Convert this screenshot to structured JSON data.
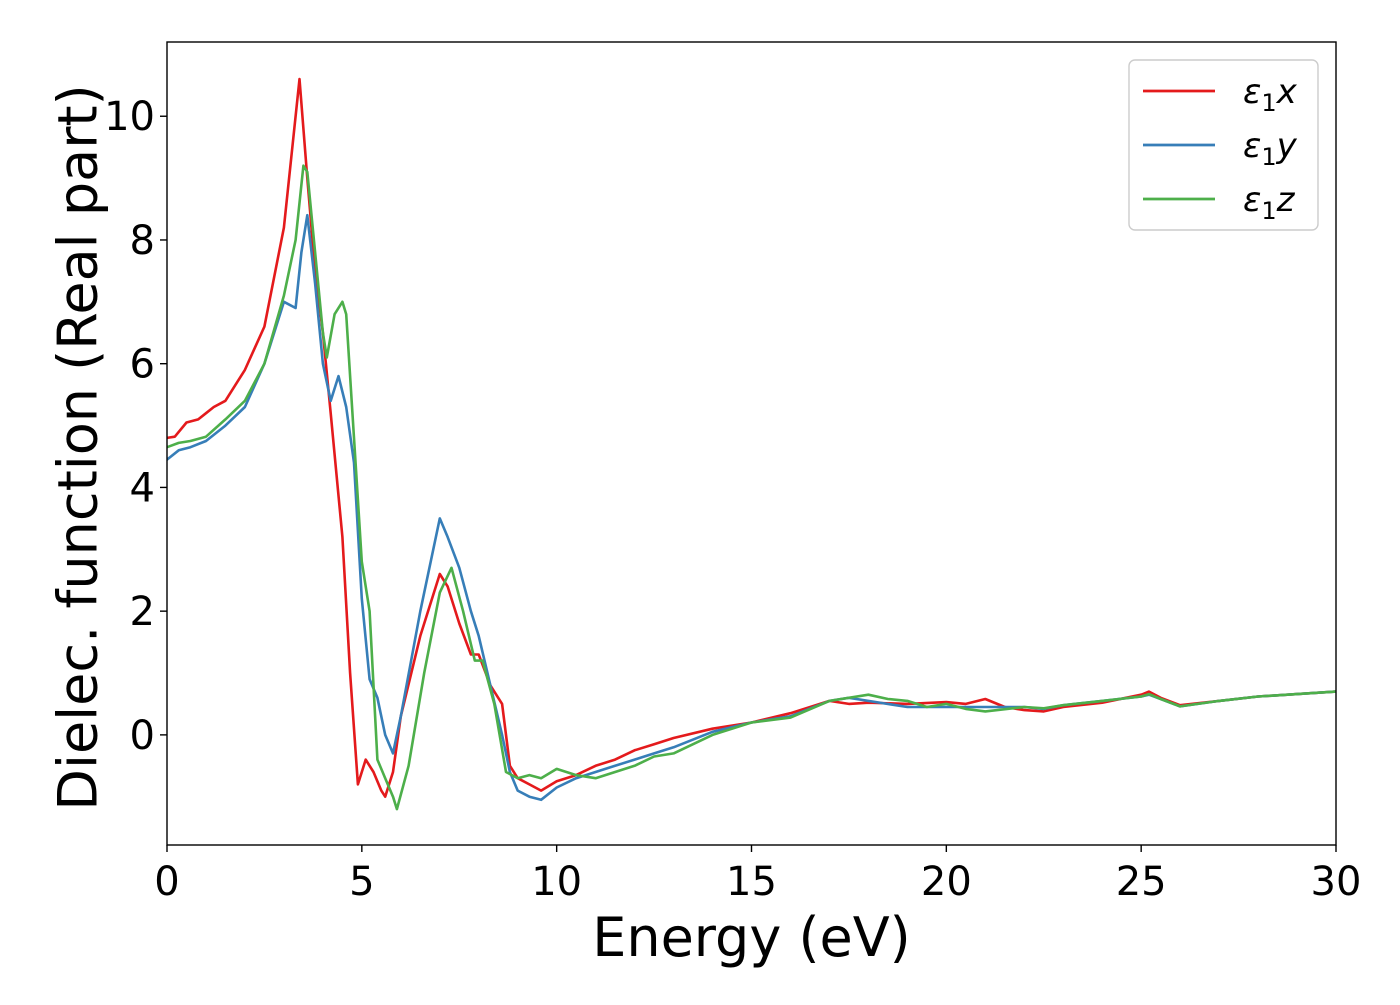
{
  "chart_data": {
    "type": "line",
    "title": "",
    "xlabel": "Energy (eV)",
    "ylabel": "Dielec. function (Real part)",
    "xlim": [
      0,
      30
    ],
    "ylim": [
      -1.78,
      11.2
    ],
    "xticks": [
      0,
      5,
      10,
      15,
      20,
      25,
      30
    ],
    "yticks": [
      0,
      2,
      4,
      6,
      8,
      10
    ],
    "grid": false,
    "legend_position": "top-right",
    "series": [
      {
        "name": "ε1x",
        "legend_base": "ε",
        "legend_sub": "1",
        "legend_suffix": "x",
        "color": "#e41a1c",
        "x": [
          0,
          0.2,
          0.5,
          0.8,
          1.0,
          1.2,
          1.5,
          2.0,
          2.5,
          3.0,
          3.2,
          3.4,
          3.6,
          3.8,
          4.0,
          4.2,
          4.5,
          4.7,
          4.9,
          5.1,
          5.3,
          5.5,
          5.6,
          5.8,
          6.0,
          6.5,
          7.0,
          7.2,
          7.5,
          7.8,
          8.0,
          8.3,
          8.6,
          8.8,
          9.0,
          9.3,
          9.6,
          10.0,
          10.5,
          11.0,
          11.5,
          12.0,
          12.5,
          13.0,
          14.0,
          15.0,
          16.0,
          17.0,
          17.5,
          18.0,
          19.0,
          20.0,
          20.5,
          21.0,
          21.5,
          22.0,
          22.5,
          23.0,
          24.0,
          25.0,
          25.2,
          25.5,
          26.0,
          27.0,
          28.0,
          29.0,
          30.0
        ],
        "y": [
          4.8,
          4.82,
          5.05,
          5.1,
          5.2,
          5.3,
          5.4,
          5.9,
          6.6,
          8.2,
          9.4,
          10.6,
          9.0,
          7.5,
          6.5,
          5.2,
          3.2,
          1.0,
          -0.8,
          -0.4,
          -0.6,
          -0.9,
          -1.0,
          -0.6,
          0.3,
          1.6,
          2.6,
          2.4,
          1.8,
          1.3,
          1.3,
          0.8,
          0.5,
          -0.5,
          -0.7,
          -0.8,
          -0.9,
          -0.75,
          -0.65,
          -0.5,
          -0.4,
          -0.25,
          -0.15,
          -0.05,
          0.1,
          0.2,
          0.35,
          0.55,
          0.5,
          0.52,
          0.5,
          0.53,
          0.5,
          0.58,
          0.45,
          0.4,
          0.38,
          0.45,
          0.52,
          0.65,
          0.7,
          0.6,
          0.48,
          0.55,
          0.62,
          0.66,
          0.7
        ]
      },
      {
        "name": "ε1y",
        "legend_base": "ε",
        "legend_sub": "1",
        "legend_suffix": "y",
        "color": "#377eb8",
        "x": [
          0,
          0.3,
          0.6,
          1.0,
          1.5,
          2.0,
          2.5,
          3.0,
          3.3,
          3.45,
          3.6,
          3.8,
          4.0,
          4.2,
          4.4,
          4.6,
          4.8,
          5.0,
          5.2,
          5.4,
          5.6,
          5.8,
          6.0,
          6.5,
          7.0,
          7.2,
          7.5,
          7.8,
          8.0,
          8.3,
          8.6,
          8.8,
          9.0,
          9.3,
          9.6,
          10.0,
          10.5,
          11.0,
          11.5,
          12.0,
          12.5,
          13.0,
          14.0,
          15.0,
          16.0,
          17.0,
          17.5,
          18.0,
          19.0,
          20.0,
          20.5,
          21.0,
          21.5,
          22.0,
          22.5,
          23.0,
          24.0,
          25.0,
          25.2,
          25.5,
          26.0,
          27.0,
          28.0,
          29.0,
          30.0
        ],
        "y": [
          4.45,
          4.6,
          4.65,
          4.75,
          5.0,
          5.3,
          6.0,
          7.0,
          6.9,
          7.8,
          8.4,
          7.3,
          6.0,
          5.4,
          5.8,
          5.3,
          4.4,
          2.2,
          0.9,
          0.6,
          0.0,
          -0.3,
          0.3,
          2.0,
          3.5,
          3.2,
          2.7,
          2.0,
          1.6,
          0.8,
          0.0,
          -0.6,
          -0.9,
          -1.0,
          -1.05,
          -0.85,
          -0.7,
          -0.6,
          -0.5,
          -0.4,
          -0.3,
          -0.2,
          0.05,
          0.2,
          0.3,
          0.55,
          0.6,
          0.55,
          0.45,
          0.45,
          0.45,
          0.45,
          0.45,
          0.45,
          0.42,
          0.48,
          0.55,
          0.62,
          0.65,
          0.58,
          0.46,
          0.55,
          0.62,
          0.66,
          0.7
        ]
      },
      {
        "name": "ε1z",
        "legend_base": "ε",
        "legend_sub": "1",
        "legend_suffix": "z",
        "color": "#4daf4a",
        "x": [
          0,
          0.3,
          0.6,
          1.0,
          1.5,
          2.0,
          2.5,
          3.0,
          3.3,
          3.5,
          3.6,
          3.8,
          4.0,
          4.1,
          4.3,
          4.5,
          4.6,
          4.8,
          5.0,
          5.2,
          5.4,
          5.6,
          5.8,
          5.9,
          6.2,
          6.6,
          7.0,
          7.3,
          7.6,
          7.9,
          8.1,
          8.4,
          8.7,
          9.0,
          9.3,
          9.6,
          10.0,
          10.5,
          11.0,
          11.5,
          12.0,
          12.5,
          13.0,
          14.0,
          15.0,
          16.0,
          17.0,
          18.0,
          18.5,
          19.0,
          19.5,
          20.0,
          20.5,
          21.0,
          22.0,
          22.5,
          23.0,
          24.0,
          25.0,
          25.2,
          25.5,
          26.0,
          27.0,
          28.0,
          29.0,
          30.0
        ],
        "y": [
          4.65,
          4.72,
          4.75,
          4.82,
          5.1,
          5.4,
          6.0,
          7.1,
          8.0,
          9.2,
          9.1,
          7.8,
          6.5,
          6.1,
          6.8,
          7.0,
          6.8,
          4.8,
          2.8,
          2.0,
          -0.4,
          -0.7,
          -1.0,
          -1.2,
          -0.5,
          1.0,
          2.3,
          2.7,
          2.0,
          1.2,
          1.2,
          0.5,
          -0.6,
          -0.7,
          -0.65,
          -0.7,
          -0.55,
          -0.65,
          -0.7,
          -0.6,
          -0.5,
          -0.35,
          -0.3,
          0.0,
          0.2,
          0.28,
          0.55,
          0.65,
          0.58,
          0.55,
          0.45,
          0.5,
          0.42,
          0.38,
          0.45,
          0.43,
          0.48,
          0.55,
          0.62,
          0.66,
          0.58,
          0.46,
          0.55,
          0.62,
          0.66,
          0.7
        ]
      }
    ]
  }
}
